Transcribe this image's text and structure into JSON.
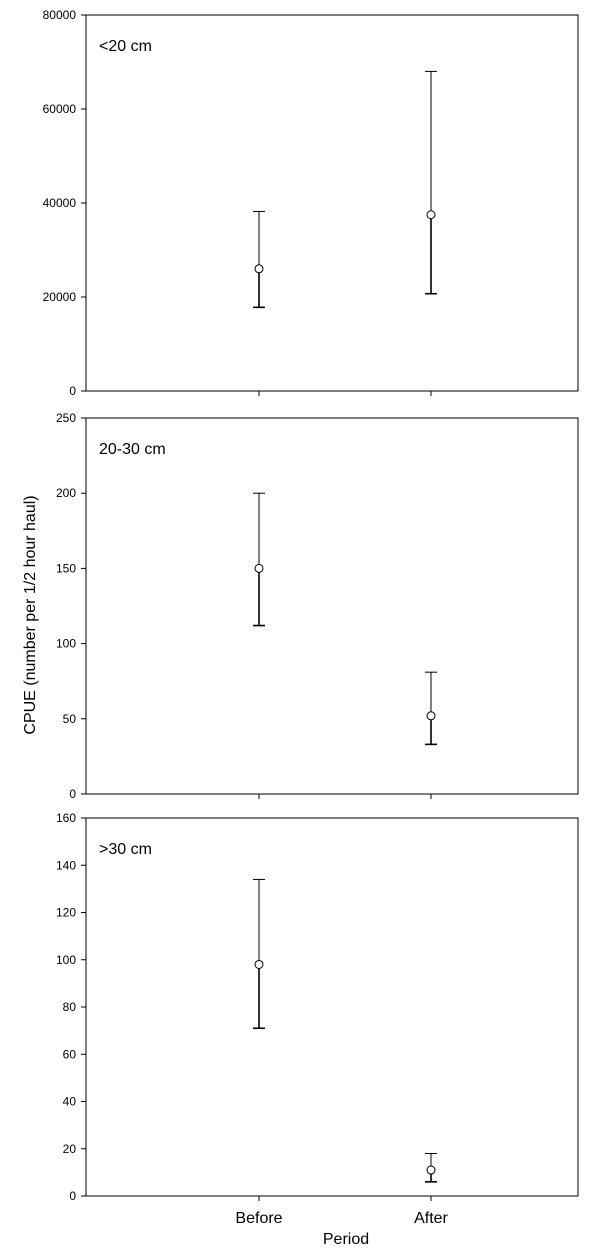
{
  "chart_data": {
    "type": "scatter",
    "ylabel": "CPUE (number per 1/2 hour haul)",
    "xlabel": "Period",
    "categories": [
      "Before",
      "After"
    ],
    "error_bars": true,
    "marker": "open-circle",
    "grid": false,
    "panels": [
      {
        "label": "<20 cm",
        "ylim": [
          0,
          80000
        ],
        "yticks": [
          0,
          20000,
          40000,
          60000,
          80000
        ],
        "points": [
          {
            "category": "Before",
            "mean": 26000,
            "lower": 17800,
            "upper": 38200
          },
          {
            "category": "After",
            "mean": 37500,
            "lower": 20700,
            "upper": 68000
          }
        ]
      },
      {
        "label": "20-30 cm",
        "ylim": [
          0,
          250
        ],
        "yticks": [
          0,
          50,
          100,
          150,
          200,
          250
        ],
        "points": [
          {
            "category": "Before",
            "mean": 150,
            "lower": 112,
            "upper": 200
          },
          {
            "category": "After",
            "mean": 52,
            "lower": 33,
            "upper": 81
          }
        ]
      },
      {
        "label": ">30 cm",
        "ylim": [
          0,
          160
        ],
        "yticks": [
          0,
          20,
          40,
          60,
          80,
          100,
          120,
          140,
          160
        ],
        "points": [
          {
            "category": "Before",
            "mean": 98,
            "lower": 71,
            "upper": 134
          },
          {
            "category": "After",
            "mean": 11,
            "lower": 6,
            "upper": 18
          }
        ]
      }
    ]
  }
}
